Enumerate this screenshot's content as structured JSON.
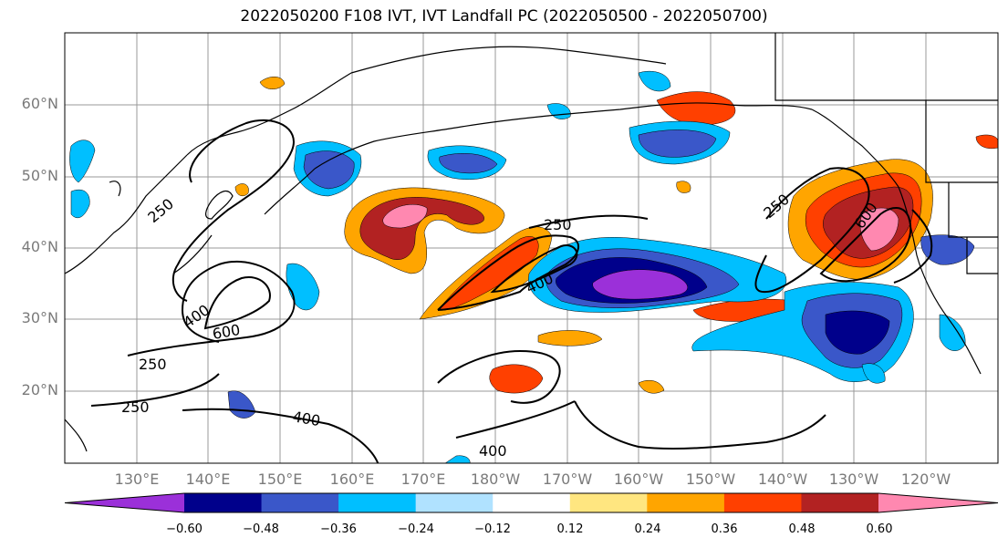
{
  "title": "2022050200 F108 IVT, IVT Landfall PC (2022050500 - 2022050700)",
  "lat_labels": [
    "60°N",
    "50°N",
    "40°N",
    "30°N",
    "20°N"
  ],
  "lon_labels": [
    "130°E",
    "140°E",
    "150°E",
    "160°E",
    "170°E",
    "180°W",
    "170°W",
    "160°W",
    "150°W",
    "140°W",
    "130°W",
    "120°W"
  ],
  "colorbar": {
    "colors": [
      "#9b30d9",
      "#00008b",
      "#3a57c9",
      "#00bfff",
      "#b0e2ff",
      "#ffffff",
      "#ffe680",
      "#ffa500",
      "#ff4000",
      "#b22222",
      "#ff88b0"
    ],
    "tick_labels": [
      "−0.60",
      "−0.48",
      "−0.36",
      "−0.24",
      "−0.12",
      "0.12",
      "0.24",
      "0.36",
      "0.48",
      "0.60"
    ],
    "extend": "both"
  },
  "contour_labels": [
    "250",
    "250",
    "400",
    "250",
    "600",
    "400",
    "250",
    "400",
    "400",
    "250",
    "600"
  ],
  "colors": {
    "contour": "#000000",
    "grid": "#999999",
    "coast": "#000000"
  }
}
